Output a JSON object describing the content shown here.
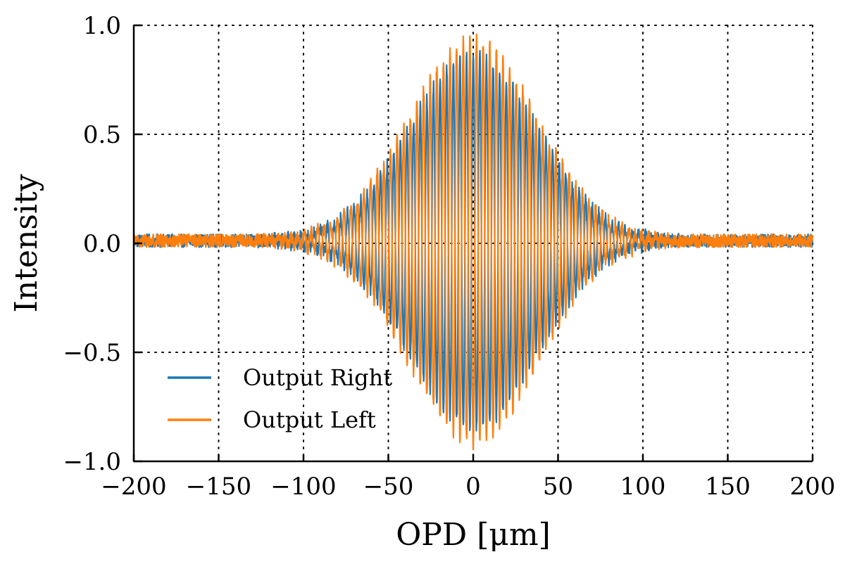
{
  "chart_data": {
    "type": "line",
    "xlabel": "OPD [μm]",
    "ylabel": "Intensity",
    "xlim": [
      -200,
      200
    ],
    "ylim": [
      -1.0,
      1.0
    ],
    "x_ticks": [
      -200,
      -150,
      -100,
      -50,
      0,
      50,
      100,
      150,
      200
    ],
    "y_ticks": [
      -1.0,
      -0.5,
      0.0,
      0.5,
      1.0
    ],
    "x_tick_labels": [
      "−200",
      "−150",
      "−100",
      "−50",
      "0",
      "50",
      "100",
      "150",
      "200"
    ],
    "y_tick_labels": [
      "−1.0",
      "−0.5",
      "0.0",
      "0.5",
      "1.0"
    ],
    "grid": true,
    "legend_position": "bottom-left",
    "series": [
      {
        "name": "Output Right",
        "color": "#1f77b4",
        "model": "interferogram",
        "peak_amplitude": 0.86,
        "envelope_width_um": 38,
        "fringe_period_um": 3.9,
        "phase_rad": 0.0,
        "noise_floor": 0.03
      },
      {
        "name": "Output Left",
        "color": "#ff7f0e",
        "model": "interferogram",
        "peak_amplitude": 0.93,
        "envelope_width_um": 38,
        "fringe_period_um": 3.9,
        "phase_rad": 3.14159,
        "noise_floor": 0.03
      }
    ]
  }
}
